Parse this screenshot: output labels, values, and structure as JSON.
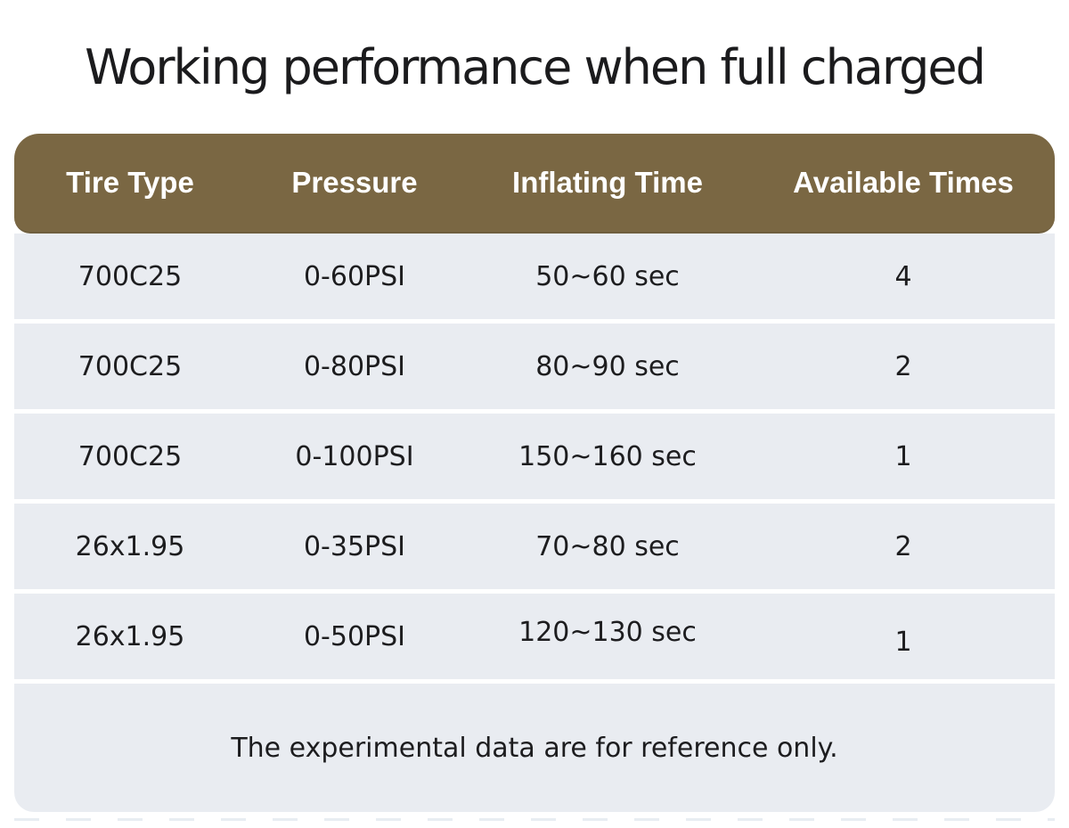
{
  "title": "Working performance when full charged",
  "chart_data": {
    "type": "table",
    "title": "Working performance when full charged",
    "columns": [
      "Tire Type",
      "Pressure",
      "Inflating Time",
      "Available Times"
    ],
    "rows": [
      [
        "700C25",
        "0-60PSI",
        "50~60 sec",
        4
      ],
      [
        "700C25",
        "0-80PSI",
        "80~90 sec",
        2
      ],
      [
        "700C25",
        "0-100PSI",
        "150~160 sec",
        1
      ],
      [
        "26x1.95",
        "0-35PSI",
        "70~80 sec",
        2
      ],
      [
        "26x1.95",
        "0-50PSI",
        "120~130 sec",
        1
      ]
    ],
    "note": "The experimental data are for reference only.",
    "colors": {
      "header_bg": "#7a6743",
      "header_text": "#ffffff",
      "row_bg": "#e9ecf1",
      "body_text": "#1d1d1f",
      "page_bg": "#ffffff"
    },
    "layout_hints": {
      "header_corner_radius_px": 28,
      "footer_corner_radius_px": 22,
      "row_separator": "thin white gap"
    }
  }
}
